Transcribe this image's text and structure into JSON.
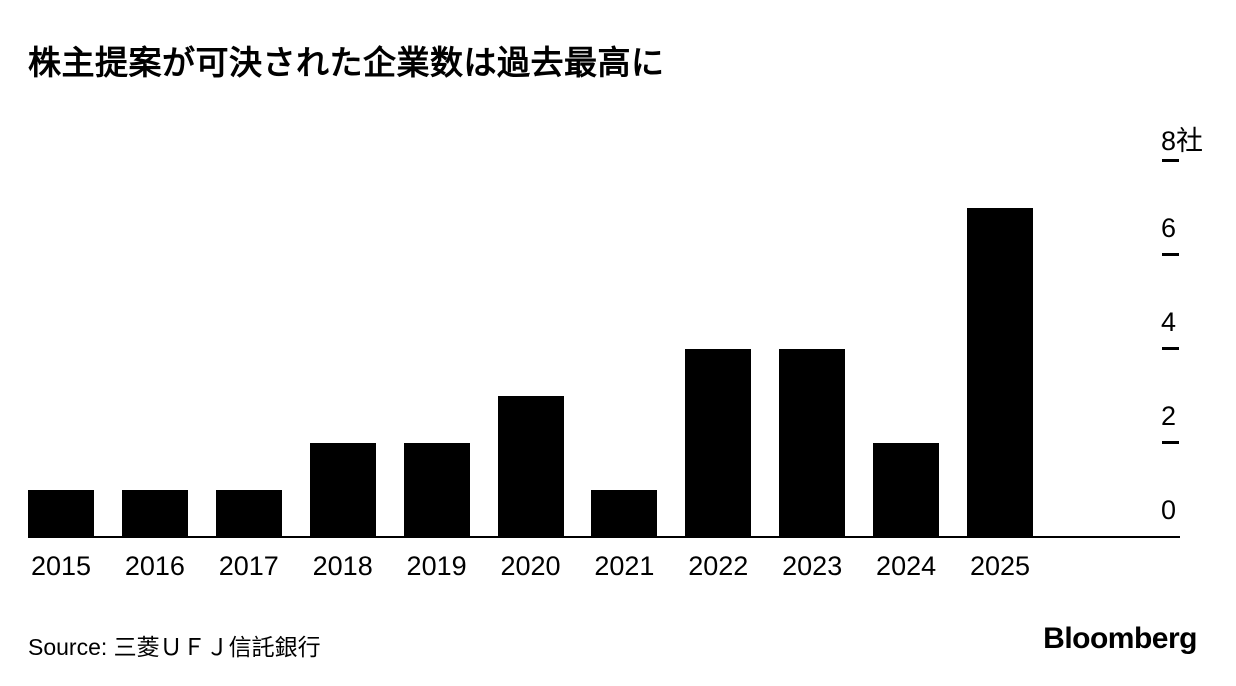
{
  "title": "株主提案が可決された企業数は過去最高に",
  "source_label": "Source: 三菱ＵＦＪ信託銀行",
  "brand": "Bloomberg",
  "colors": {
    "background": "#ffffff",
    "bar": "#000000",
    "text": "#000000",
    "axis": "#000000"
  },
  "chart_data": {
    "type": "bar",
    "title": "株主提案が可決された企業数は過去最高に",
    "categories": [
      "2015",
      "2016",
      "2017",
      "2018",
      "2019",
      "2020",
      "2021",
      "2022",
      "2023",
      "2024",
      "2025"
    ],
    "values": [
      1,
      1,
      1,
      2,
      2,
      3,
      1,
      4,
      4,
      2,
      7
    ],
    "unit_label": "社",
    "yticks": [
      0,
      2,
      4,
      6,
      8
    ],
    "ytick_labels": [
      "0",
      "2",
      "4",
      "6",
      "8社"
    ],
    "ylim": [
      0,
      8
    ],
    "xlabel": "",
    "ylabel": "",
    "y_axis_side": "right",
    "grid": false,
    "legend": "none",
    "bar_color": "#000000"
  }
}
